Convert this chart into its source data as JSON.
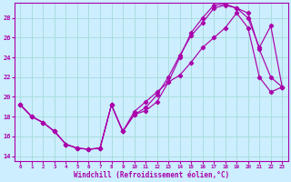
{
  "xlabel": "Windchill (Refroidissement éolien,°C)",
  "background_color": "#cceeff",
  "grid_color": "#aadddd",
  "line_color": "#aa00aa",
  "xlim": [
    -0.5,
    23.5
  ],
  "ylim": [
    13.5,
    29.5
  ],
  "xticks": [
    0,
    1,
    2,
    3,
    4,
    5,
    6,
    7,
    8,
    9,
    10,
    11,
    12,
    13,
    14,
    15,
    16,
    17,
    18,
    19,
    20,
    21,
    22,
    23
  ],
  "yticks": [
    14,
    16,
    18,
    20,
    22,
    24,
    26,
    28
  ],
  "series1_x": [
    0,
    1,
    2,
    3,
    4,
    5,
    6,
    7,
    8,
    9,
    10,
    11,
    12,
    13,
    14,
    15,
    16,
    17,
    18,
    19,
    20,
    21,
    22,
    23
  ],
  "series1_y": [
    19.2,
    18.0,
    17.4,
    16.5,
    15.2,
    14.8,
    14.7,
    14.8,
    19.2,
    16.5,
    18.2,
    18.6,
    19.5,
    21.5,
    24.0,
    26.5,
    28.0,
    29.3,
    29.4,
    29.0,
    28.0,
    25.0,
    27.2,
    21.0
  ],
  "series2_x": [
    0,
    1,
    2,
    3,
    4,
    5,
    6,
    7,
    8,
    9,
    10,
    11,
    12,
    13,
    14,
    15,
    16,
    17,
    18,
    19,
    20,
    21,
    22,
    23
  ],
  "series2_y": [
    19.2,
    18.0,
    17.4,
    16.5,
    15.2,
    14.8,
    14.7,
    14.8,
    19.2,
    16.5,
    18.2,
    18.9,
    20.2,
    22.0,
    24.2,
    26.2,
    27.5,
    29.0,
    29.3,
    29.0,
    28.5,
    24.8,
    22.0,
    21.0
  ],
  "series3_x": [
    0,
    1,
    2,
    3,
    4,
    5,
    6,
    7,
    8,
    9,
    10,
    11,
    12,
    13,
    14,
    15,
    16,
    17,
    18,
    19,
    20,
    21,
    22,
    23
  ],
  "series3_y": [
    19.2,
    18.0,
    17.4,
    16.5,
    15.2,
    14.8,
    14.7,
    14.8,
    19.2,
    16.5,
    18.5,
    19.5,
    20.5,
    21.5,
    22.2,
    23.5,
    25.0,
    26.0,
    27.0,
    28.5,
    27.0,
    22.0,
    20.5,
    21.0
  ]
}
